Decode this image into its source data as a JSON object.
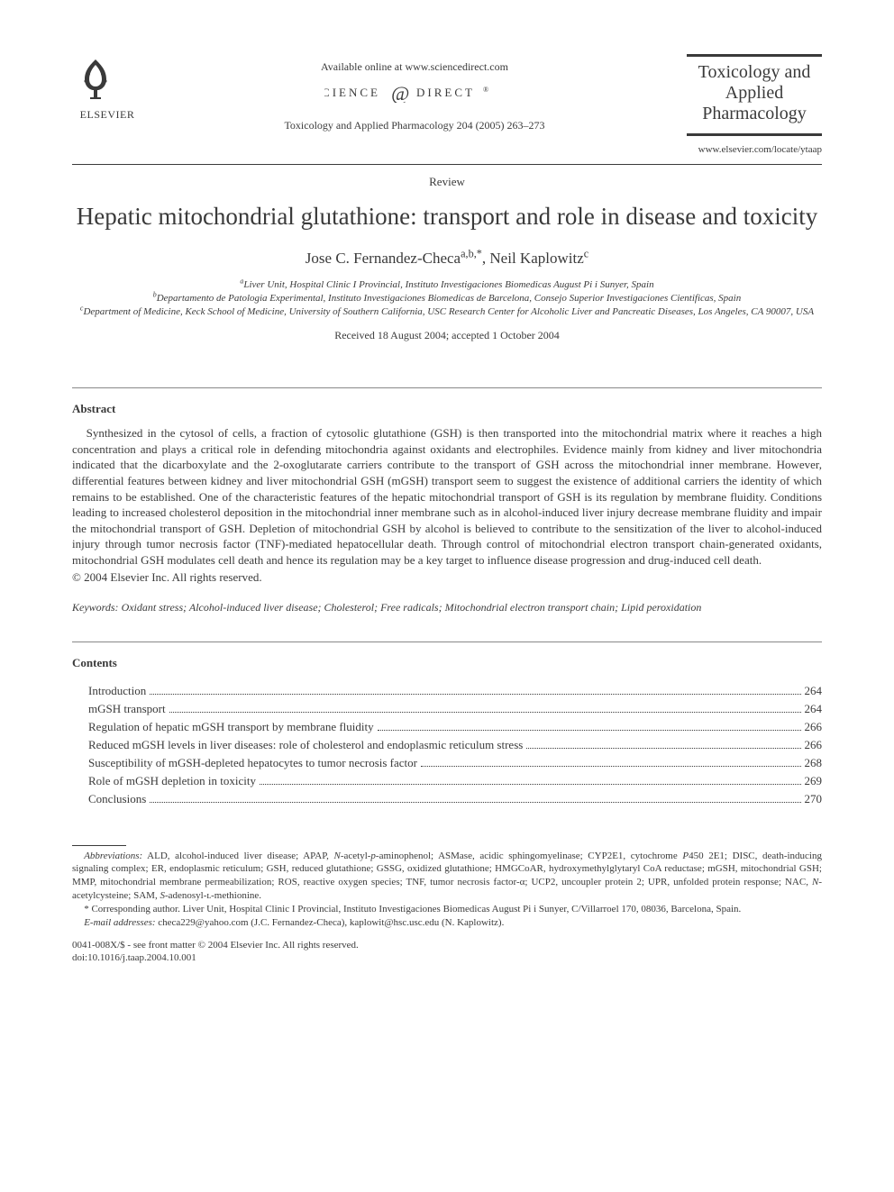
{
  "header": {
    "available_text": "Available online at www.sciencedirect.com",
    "citation": "Toxicology and Applied Pharmacology 204 (2005) 263–273",
    "journal_name": "Toxicology and Applied Pharmacology",
    "journal_url": "www.elsevier.com/locate/ytaap",
    "elsevier_label": "ELSEVIER",
    "sd_label_left": "SCIENCE",
    "sd_label_right": "DIRECT"
  },
  "article": {
    "type": "Review",
    "title": "Hepatic mitochondrial glutathione: transport and role in disease and toxicity",
    "authors_html": "Jose C. Fernandez-Checa<sup>a,b,*</sup>, Neil Kaplowitz<sup>c</sup>",
    "affiliations": [
      "<sup>a</sup>Liver Unit, Hospital Clinic I Provincial, Instituto Investigaciones Biomedicas August Pi i Sunyer, Spain",
      "<sup>b</sup>Departamento de Patologia Experimental, Instituto Investigaciones Biomedicas de Barcelona, Consejo Superior Investigaciones Cientificas, Spain",
      "<sup>c</sup>Department of Medicine, Keck School of Medicine, University of Southern California, USC Research Center for Alcoholic Liver and Pancreatic Diseases, Los Angeles, CA 90007, USA"
    ],
    "dates": "Received 18 August 2004; accepted 1 October 2004"
  },
  "abstract": {
    "heading": "Abstract",
    "body": "Synthesized in the cytosol of cells, a fraction of cytosolic glutathione (GSH) is then transported into the mitochondrial matrix where it reaches a high concentration and plays a critical role in defending mitochondria against oxidants and electrophiles. Evidence mainly from kidney and liver mitochondria indicated that the dicarboxylate and the 2-oxoglutarate carriers contribute to the transport of GSH across the mitochondrial inner membrane. However, differential features between kidney and liver mitochondrial GSH (mGSH) transport seem to suggest the existence of additional carriers the identity of which remains to be established. One of the characteristic features of the hepatic mitochondrial transport of GSH is its regulation by membrane fluidity. Conditions leading to increased cholesterol deposition in the mitochondrial inner membrane such as in alcohol-induced liver injury decrease membrane fluidity and impair the mitochondrial transport of GSH. Depletion of mitochondrial GSH by alcohol is believed to contribute to the sensitization of the liver to alcohol-induced injury through tumor necrosis factor (TNF)-mediated hepatocellular death. Through control of mitochondrial electron transport chain-generated oxidants, mitochondrial GSH modulates cell death and hence its regulation may be a key target to influence disease progression and drug-induced cell death.",
    "copyright": "© 2004 Elsevier Inc. All rights reserved."
  },
  "keywords": {
    "label": "Keywords:",
    "list": "Oxidant stress; Alcohol-induced liver disease; Cholesterol; Free radicals; Mitochondrial electron transport chain; Lipid peroxidation"
  },
  "contents": {
    "heading": "Contents",
    "items": [
      {
        "label": "Introduction",
        "page": "264"
      },
      {
        "label": "mGSH transport",
        "page": "264"
      },
      {
        "label": "Regulation of hepatic mGSH transport by membrane fluidity",
        "page": "266"
      },
      {
        "label": "Reduced mGSH levels in liver diseases: role of cholesterol and endoplasmic reticulum stress",
        "page": "266"
      },
      {
        "label": "Susceptibility of mGSH-depleted hepatocytes to tumor necrosis factor",
        "page": "268"
      },
      {
        "label": "Role of mGSH depletion in toxicity",
        "page": "269"
      },
      {
        "label": "Conclusions",
        "page": "270"
      }
    ]
  },
  "footnotes": {
    "abbrev_html": "<i>Abbreviations:</i> ALD, alcohol-induced liver disease; APAP, <i>N</i>-acetyl-<i>p</i>-aminophenol; ASMase, acidic sphingomyelinase; CYP2E1, cytochrome <i>P</i>450 2E1; DISC, death-inducing signaling complex; ER, endoplasmic reticulum; GSH, reduced glutathione; GSSG, oxidized glutathione; HMGCoAR, hydroxymethylglytaryl CoA reductase; mGSH, mitochondrial GSH; MMP, mitochondrial membrane permeabilization; ROS, reactive oxygen species; TNF, tumor necrosis factor-α; UCP2, uncoupler protein 2; UPR, unfolded protein response; NAC, <i>N</i>-acetylcysteine; SAM, <i>S</i>-adenosyl-ʟ-methionine.",
    "corresp": "* Corresponding author. Liver Unit, Hospital Clinic I Provincial, Instituto Investigaciones Biomedicas August Pi i Sunyer, C/Villarroel 170, 08036, Barcelona, Spain.",
    "email_html": "<i>E-mail addresses:</i> checa229@yahoo.com (J.C. Fernandez-Checa), kaplowit@hsc.usc.edu (N. Kaplowitz)."
  },
  "footer": {
    "line1": "0041-008X/$ - see front matter © 2004 Elsevier Inc. All rights reserved.",
    "line2": "doi:10.1016/j.taap.2004.10.001"
  },
  "colors": {
    "text": "#3a3a3a",
    "rule": "#3a3a3a",
    "background": "#ffffff"
  },
  "typography": {
    "body_pt": 13,
    "title_pt": 27,
    "authors_pt": 17,
    "journal_name_pt": 20,
    "small_pt": 11,
    "font_family": "Times New Roman"
  }
}
